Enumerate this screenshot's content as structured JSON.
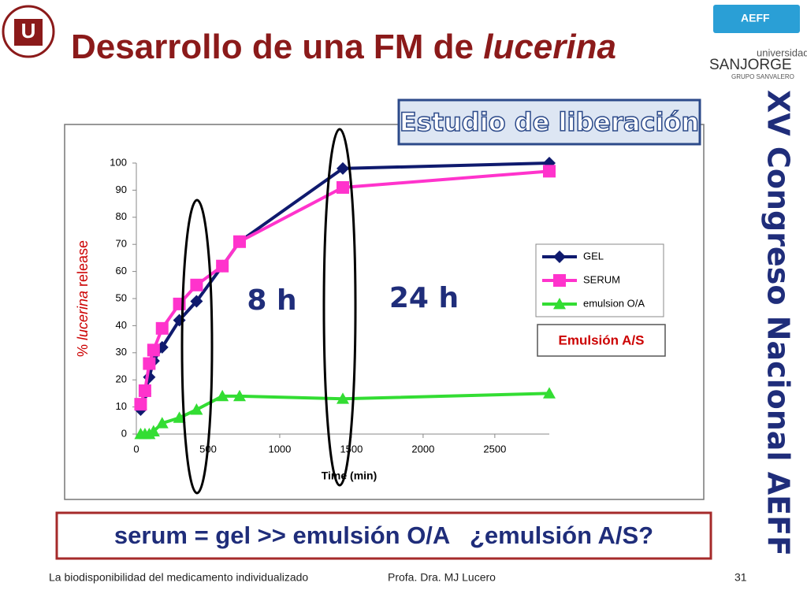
{
  "title_main": "Desarrollo de una FM de ",
  "title_italic": "lucerina",
  "logo_right": [
    "universidad",
    "SANJORGE",
    "GRUPO SANVALERO"
  ],
  "side_title": "XV Congreso Nacional AEFF",
  "box_top": "Estudio de liberación",
  "box_legend": "Emulsión A/S",
  "label_8h": "8 h",
  "label_24h": "24 h",
  "conclusion": "serum = gel >> emulsión O/A   ¿emulsión A/S?",
  "footer": {
    "left": "La biodisponibilidad del medicamento individualizado",
    "center": "Profa. Dra. MJ Lucero",
    "page": "31"
  },
  "chart_data": {
    "type": "line",
    "x_label": "Time (min)",
    "y_label": [
      "% ",
      "lucerina",
      " release"
    ],
    "x": [
      30,
      60,
      90,
      120,
      180,
      300,
      420,
      600,
      720,
      1440,
      2880
    ],
    "series": [
      {
        "name": "GEL",
        "color": "#0f1a6e",
        "marker": "diamond",
        "values": [
          9,
          15,
          21,
          27,
          32,
          42,
          49,
          62,
          71,
          98,
          100
        ]
      },
      {
        "name": "SERUM",
        "color": "#ff33cc",
        "marker": "square",
        "values": [
          11,
          16,
          26,
          31,
          39,
          48,
          55,
          62,
          71,
          91,
          97
        ]
      },
      {
        "name": "emulsion O/A",
        "color": "#33dd33",
        "marker": "triangle",
        "values": [
          0,
          0,
          0,
          1,
          4,
          6,
          9,
          14,
          14,
          13,
          15
        ]
      }
    ],
    "xlim": [
      0,
      2880
    ],
    "xticks": [
      0,
      500,
      1000,
      1500,
      2000,
      2500
    ],
    "ylim": [
      0,
      100
    ],
    "yticks": [
      0,
      10,
      20,
      30,
      40,
      50,
      60,
      70,
      80,
      90,
      100
    ]
  }
}
